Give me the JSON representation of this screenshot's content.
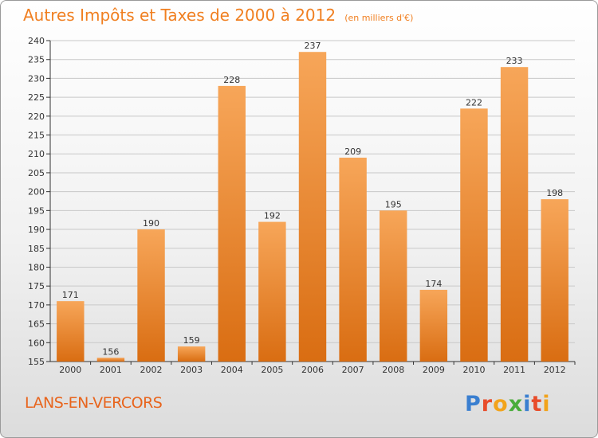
{
  "title": "Autres Impôts et Taxes de 2000 à 2012",
  "unit_label": "(en milliers d'€)",
  "commune": "LANS-EN-VERCORS",
  "logo": {
    "text": "Proxiti",
    "letters": [
      {
        "char": "P",
        "color": "#3a7fd0"
      },
      {
        "char": "r",
        "color": "#e84c2a"
      },
      {
        "char": "o",
        "color": "#f2a31b"
      },
      {
        "char": "x",
        "color": "#49ad3a"
      },
      {
        "char": "i",
        "color": "#3a7fd0"
      },
      {
        "char": "t",
        "color": "#e84c2a"
      },
      {
        "char": "i",
        "color": "#f2a31b"
      }
    ]
  },
  "colors": {
    "title": "#f07f20",
    "bar_light": "#f7a659",
    "bar_dark": "#d96d12",
    "grid": "#c8c8c8",
    "axis": "#333333"
  },
  "chart_data": {
    "type": "bar",
    "categories": [
      "2000",
      "2001",
      "2002",
      "2003",
      "2004",
      "2005",
      "2006",
      "2007",
      "2008",
      "2009",
      "2010",
      "2011",
      "2012"
    ],
    "values": [
      171,
      156,
      190,
      159,
      228,
      192,
      237,
      209,
      195,
      174,
      222,
      233,
      198
    ],
    "ylim": [
      155,
      240
    ],
    "ytick_step": 5,
    "grid": true,
    "data_labels": true
  }
}
